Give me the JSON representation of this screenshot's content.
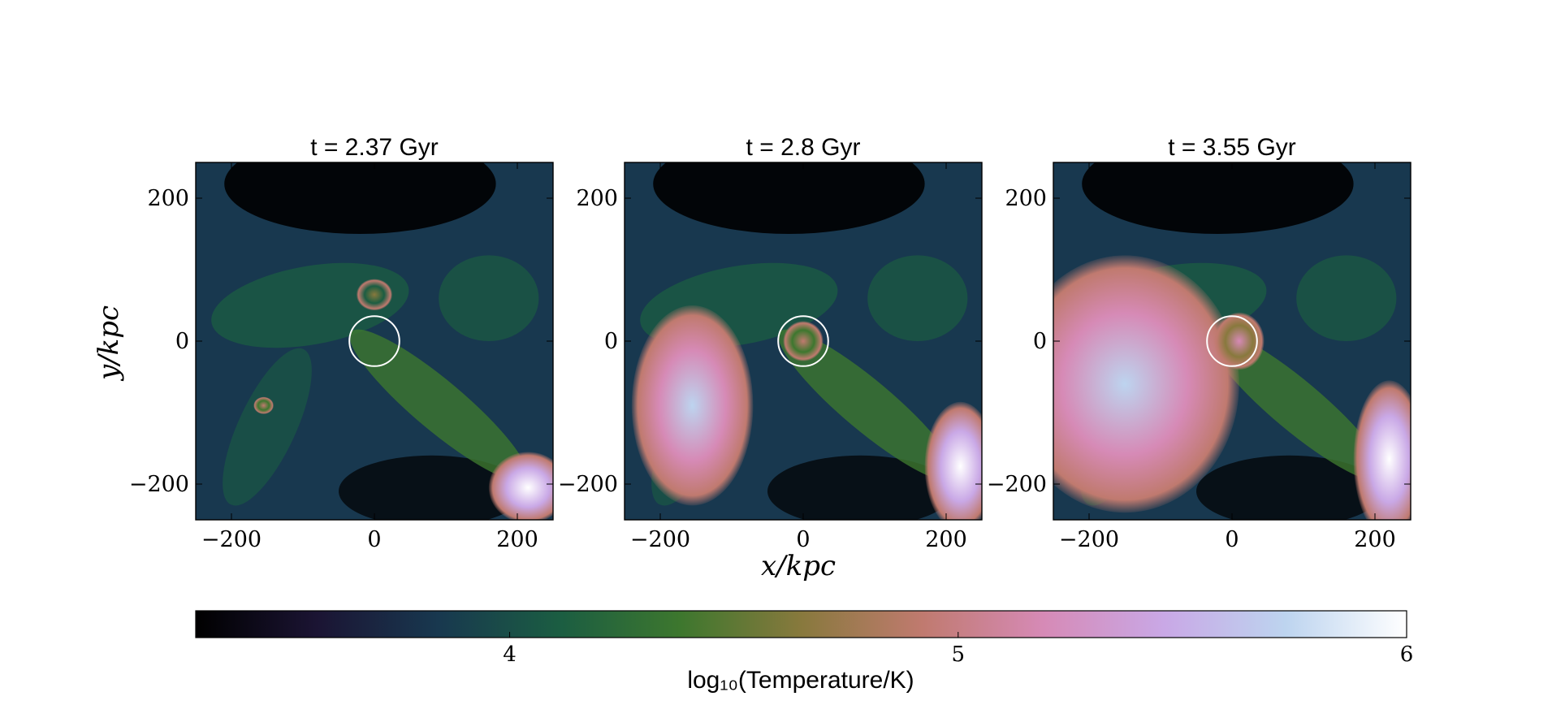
{
  "chart_data": {
    "type": "heatmap",
    "panels": [
      {
        "title": "t = 2.37 Gyr",
        "xlim": [
          -250,
          250
        ],
        "ylim": [
          -250,
          250
        ],
        "circle": {
          "x": 0,
          "y": 0,
          "r": 35
        },
        "hot_regions": [
          {
            "x": 215,
            "y": -205,
            "rx": 55,
            "ry": 50,
            "peak": 5.9
          },
          {
            "x": -155,
            "y": -90,
            "rx": 14,
            "ry": 12,
            "peak": 4.9
          },
          {
            "x": 0,
            "y": 65,
            "rx": 25,
            "ry": 22,
            "peak": 4.75
          }
        ]
      },
      {
        "title": "t = 2.8 Gyr",
        "xlim": [
          -250,
          250
        ],
        "ylim": [
          -250,
          250
        ],
        "circle": {
          "x": 0,
          "y": 0,
          "r": 35
        },
        "hot_regions": [
          {
            "x": -155,
            "y": -90,
            "rx": 85,
            "ry": 140,
            "peak": 5.8
          },
          {
            "x": 220,
            "y": -175,
            "rx": 50,
            "ry": 90,
            "peak": 5.9
          },
          {
            "x": 0,
            "y": 0,
            "rx": 28,
            "ry": 28,
            "peak": 4.8
          }
        ]
      },
      {
        "title": "t = 3.55 Gyr",
        "xlim": [
          -250,
          250
        ],
        "ylim": [
          -250,
          250
        ],
        "circle": {
          "x": 0,
          "y": 0,
          "r": 35
        },
        "hot_regions": [
          {
            "x": -150,
            "y": -60,
            "rx": 160,
            "ry": 180,
            "peak": 5.85
          },
          {
            "x": 220,
            "y": -165,
            "rx": 50,
            "ry": 110,
            "peak": 5.9
          },
          {
            "x": 10,
            "y": 0,
            "rx": 35,
            "ry": 40,
            "peak": 5.2
          }
        ]
      }
    ],
    "xlabel": "x/kpc",
    "ylabel": "y/kpc",
    "x_ticks": [
      -200,
      0,
      200
    ],
    "y_ticks": [
      200,
      0,
      -200
    ],
    "x_tick_labels": [
      "−200",
      "0",
      "200"
    ],
    "y_tick_labels": [
      "200",
      "0",
      "−200"
    ],
    "colorbar": {
      "label": "log₁₀(Temperature/K)",
      "range": [
        3.3,
        6
      ],
      "ticks": [
        4,
        5,
        6
      ],
      "tick_labels": [
        "4",
        "5",
        "6"
      ],
      "colormap": "cubehelix",
      "colors": [
        "#000000",
        "#1b1433",
        "#18384f",
        "#1b5d42",
        "#3d772e",
        "#88793d",
        "#c07a6f",
        "#d68ab6",
        "#c9a8e6",
        "#bdd4ef",
        "#ffffff"
      ]
    }
  }
}
